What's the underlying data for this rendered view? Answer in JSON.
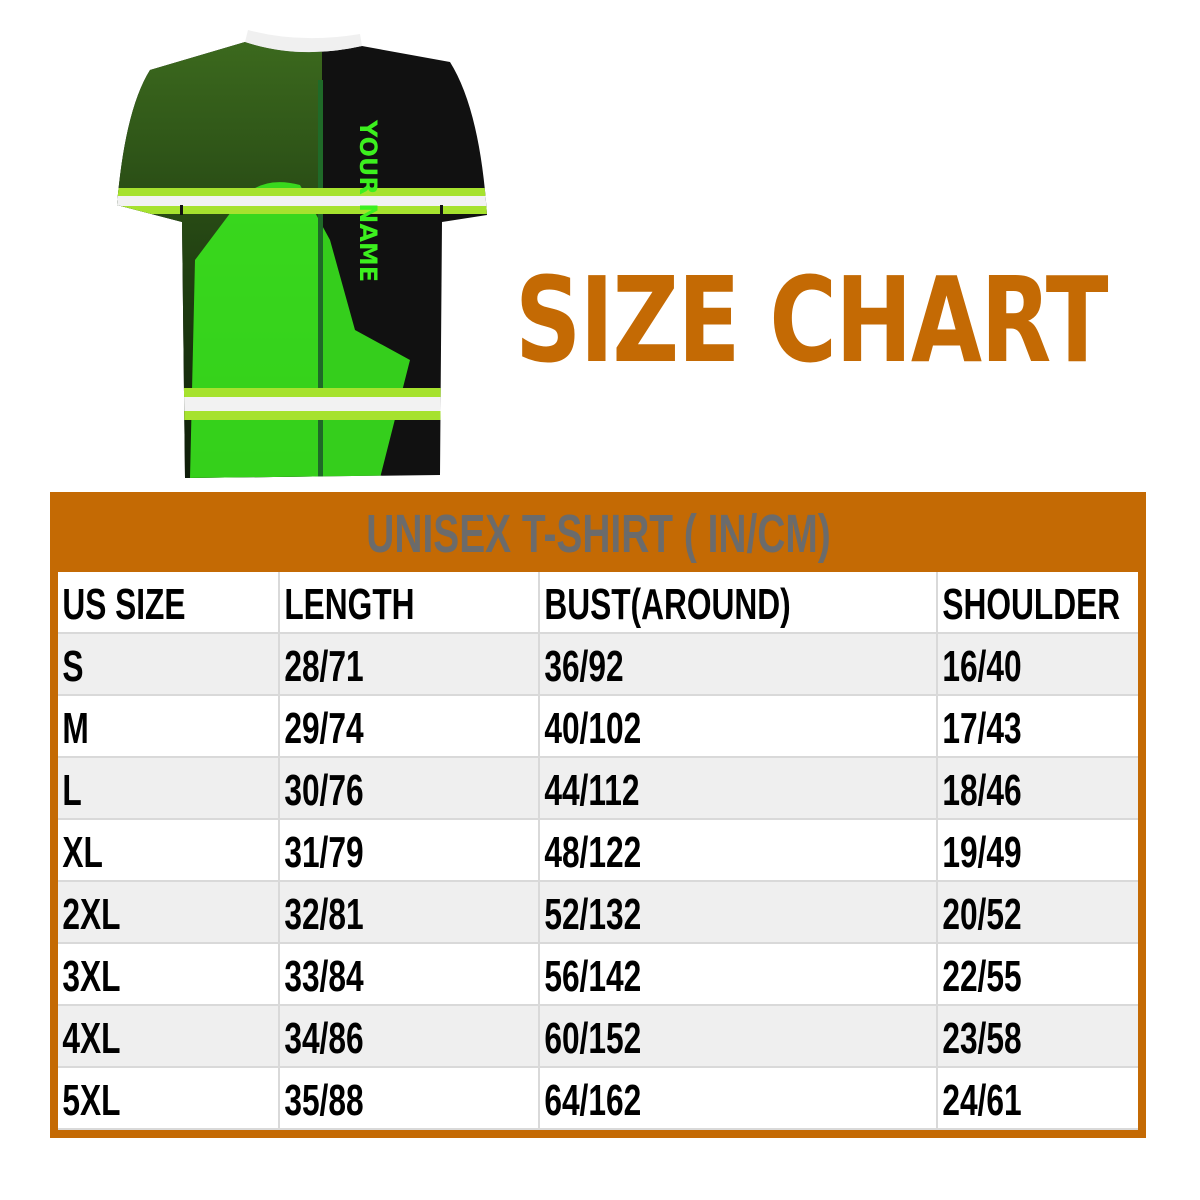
{
  "product": {
    "shirt_print_text": "YOUR NAME"
  },
  "title": "SIZE CHART",
  "table": {
    "title": "UNISEX T-SHIRT ( IN/CM)",
    "headers": [
      "US SIZE",
      "LENGTH",
      "BUST(AROUND)",
      "SHOULDER"
    ],
    "rows": [
      [
        "S",
        "28/71",
        "36/92",
        "16/40"
      ],
      [
        "M",
        "29/74",
        "40/102",
        "17/43"
      ],
      [
        "L",
        "30/76",
        "44/112",
        "18/46"
      ],
      [
        "XL",
        "31/79",
        "48/122",
        "19/49"
      ],
      [
        "2XL",
        "32/81",
        "52/132",
        "20/52"
      ],
      [
        "3XL",
        "33/84",
        "56/142",
        "22/55"
      ],
      [
        "4XL",
        "34/86",
        "60/152",
        "23/58"
      ],
      [
        "5XL",
        "35/88",
        "64/162",
        "24/61"
      ]
    ]
  },
  "colors": {
    "accent": "#c46a04",
    "table_title_text": "#6b6b6b",
    "row_alt": "#efefef",
    "shirt_green": "#3cf01e",
    "shirt_dark": "#111111"
  }
}
